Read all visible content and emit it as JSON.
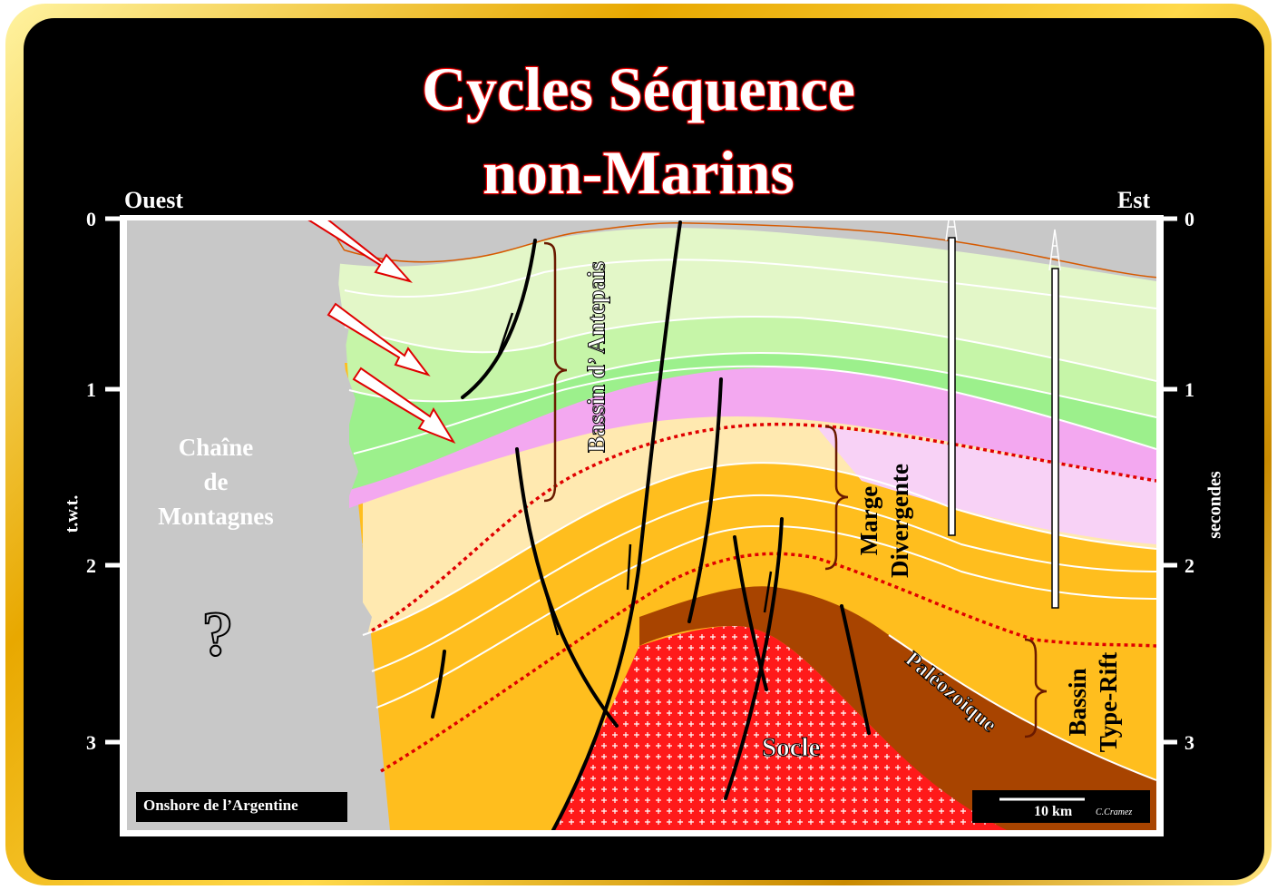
{
  "title": {
    "line1": "Cycles Séquence",
    "line2": "non-Marins"
  },
  "orientation": {
    "west": "Ouest",
    "east": "Est"
  },
  "axes": {
    "left_label": "t.w.t.",
    "right_label": "secondes",
    "ticks": [
      "0",
      "1",
      "2",
      "3"
    ]
  },
  "labels": {
    "mountains": [
      "Chaîne",
      "de",
      "Montagnes"
    ],
    "question": "?",
    "foreland_basin": "Bassin d’ Antepais",
    "divergent_margin": [
      "Marge",
      "Divergente"
    ],
    "paleozoic": "Paléozoïque",
    "basement": "Socle",
    "rift_basin": [
      "Bassin",
      "Type-Rift"
    ],
    "location": "Onshore de l’Argentine",
    "scale": "10 km",
    "author": "C.Cramez"
  },
  "colors": {
    "title_stroke": "#e00000",
    "frame_gold": "#e8a800",
    "basement_red": "#ff1a1a",
    "paleozoic_brown": "#a84400",
    "mountain_grey": "#c8c8c8",
    "pink_unit": "#f3a8f0",
    "green_unit": "#9af58a",
    "orange_unit": "#ffc020",
    "sequence_boundary": "#e00000"
  }
}
